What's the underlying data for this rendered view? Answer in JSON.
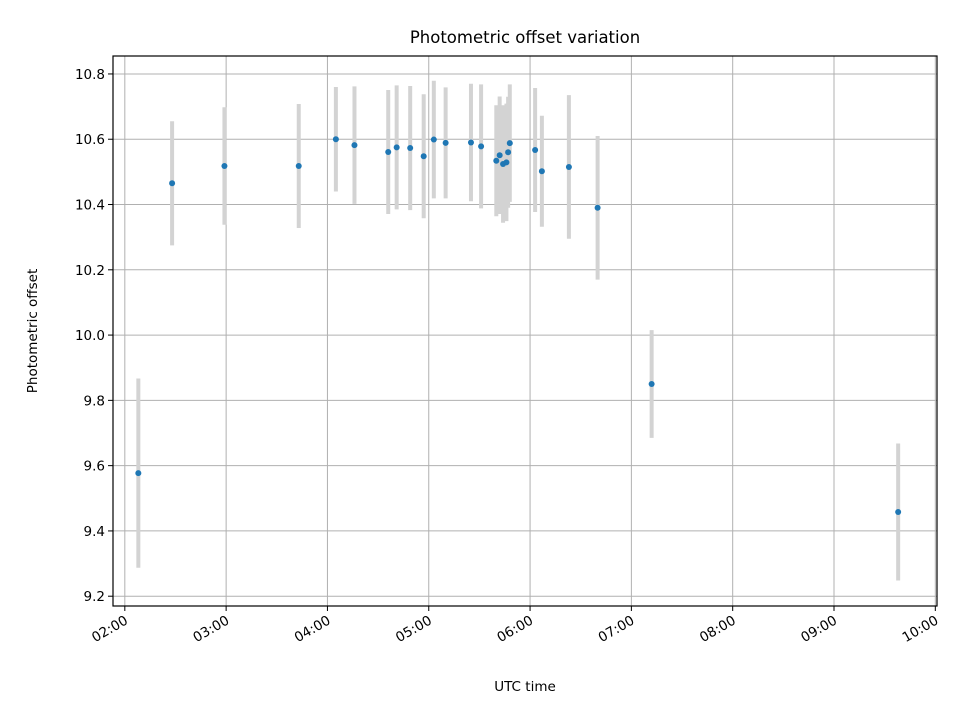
{
  "chart_data": {
    "type": "scatter",
    "title": "Photometric offset variation",
    "xlabel": "UTC time",
    "ylabel": "Photometric offset",
    "xlim": [
      "01:53",
      "10:01"
    ],
    "ylim": [
      9.17,
      10.855
    ],
    "x_ticks": [
      "02:00",
      "03:00",
      "04:00",
      "05:00",
      "06:00",
      "07:00",
      "08:00",
      "09:00",
      "10:00"
    ],
    "y_ticks": [
      "9.2",
      "9.4",
      "9.6",
      "9.8",
      "10.0",
      "10.2",
      "10.4",
      "10.6",
      "10.8"
    ],
    "grid": true,
    "marker_color": "#1f77b4",
    "errorbar_color": "#d3d3d3",
    "points": [
      {
        "x": "02:08",
        "y": 9.577,
        "err": 0.29
      },
      {
        "x": "02:28",
        "y": 10.465,
        "err": 0.19
      },
      {
        "x": "02:59",
        "y": 10.518,
        "err": 0.18
      },
      {
        "x": "03:43",
        "y": 10.518,
        "err": 0.19
      },
      {
        "x": "04:05",
        "y": 10.6,
        "err": 0.16
      },
      {
        "x": "04:16",
        "y": 10.582,
        "err": 0.18
      },
      {
        "x": "04:36",
        "y": 10.561,
        "err": 0.19
      },
      {
        "x": "04:41",
        "y": 10.575,
        "err": 0.19
      },
      {
        "x": "04:49",
        "y": 10.573,
        "err": 0.19
      },
      {
        "x": "04:57",
        "y": 10.548,
        "err": 0.19
      },
      {
        "x": "05:03",
        "y": 10.599,
        "err": 0.18
      },
      {
        "x": "05:10",
        "y": 10.589,
        "err": 0.17
      },
      {
        "x": "05:25",
        "y": 10.59,
        "err": 0.18
      },
      {
        "x": "05:31",
        "y": 10.578,
        "err": 0.19
      },
      {
        "x": "05:40",
        "y": 10.534,
        "err": 0.17
      },
      {
        "x": "05:42",
        "y": 10.551,
        "err": 0.18
      },
      {
        "x": "05:44",
        "y": 10.524,
        "err": 0.18
      },
      {
        "x": "05:46",
        "y": 10.529,
        "err": 0.18
      },
      {
        "x": "05:47",
        "y": 10.56,
        "err": 0.17
      },
      {
        "x": "05:48",
        "y": 10.588,
        "err": 0.18
      },
      {
        "x": "06:03",
        "y": 10.567,
        "err": 0.19
      },
      {
        "x": "06:07",
        "y": 10.502,
        "err": 0.17
      },
      {
        "x": "06:23",
        "y": 10.515,
        "err": 0.22
      },
      {
        "x": "06:40",
        "y": 10.39,
        "err": 0.22
      },
      {
        "x": "07:12",
        "y": 9.85,
        "err": 0.165
      },
      {
        "x": "09:38",
        "y": 9.458,
        "err": 0.21
      }
    ]
  }
}
